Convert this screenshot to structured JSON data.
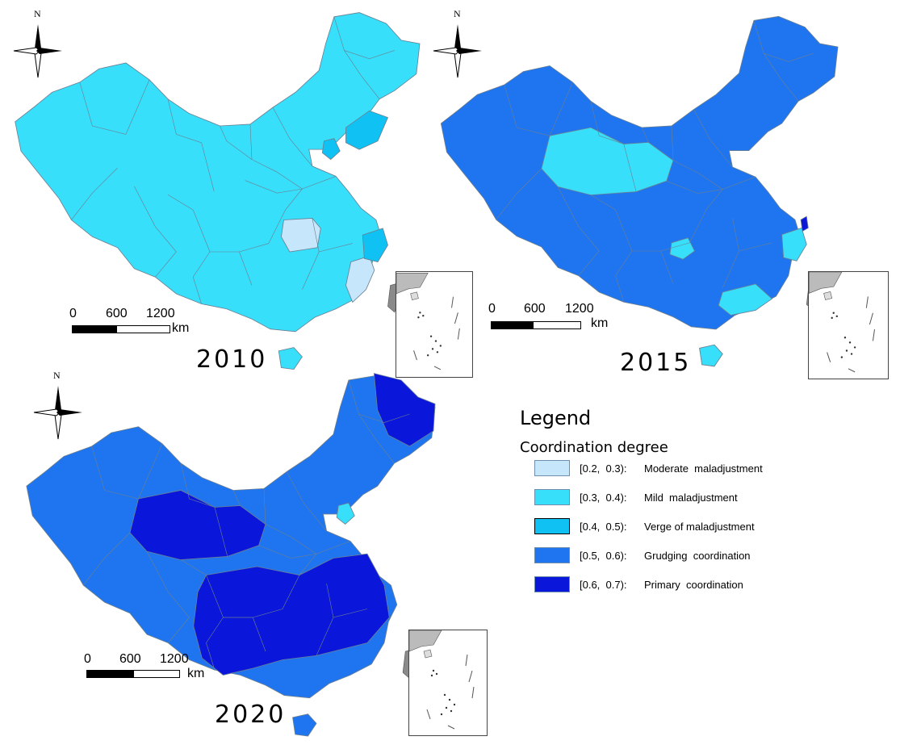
{
  "colors": {
    "moderate": "#c6e6fb",
    "mild": "#38dffb",
    "verge": "#10c2f3",
    "grudging": "#1f75ef",
    "primary": "#0a16d9",
    "border": "#6b7f91",
    "taiwan": "#8a8a8a"
  },
  "maps": [
    {
      "year": "2010",
      "north": "N",
      "scale": {
        "ticks": [
          "0",
          "600",
          "1200"
        ],
        "unit": "km"
      },
      "base_class": "mild",
      "highlighted_regions": [
        {
          "region": "central-east",
          "class": "moderate"
        },
        {
          "region": "southeast-coast",
          "class": "moderate"
        },
        {
          "region": "east-coast",
          "class": "verge"
        },
        {
          "region": "northeast-gulf",
          "class": "verge"
        },
        {
          "region": "north-capital",
          "class": "verge"
        }
      ]
    },
    {
      "year": "2015",
      "north": "N",
      "scale": {
        "ticks": [
          "0",
          "600",
          "1200"
        ],
        "unit": "km"
      },
      "base_class": "grudging",
      "highlighted_regions": [
        {
          "region": "northwest-plateau",
          "class": "mild"
        },
        {
          "region": "central-small",
          "class": "mild"
        },
        {
          "region": "east-coast",
          "class": "mild"
        },
        {
          "region": "south-coast",
          "class": "mild"
        },
        {
          "region": "southern-island",
          "class": "mild"
        },
        {
          "region": "eastern-point",
          "class": "primary"
        }
      ]
    },
    {
      "year": "2020",
      "north": "N",
      "scale": {
        "ticks": [
          "0",
          "600",
          "1200"
        ],
        "unit": "km"
      },
      "base_class": "grudging",
      "highlighted_regions": [
        {
          "region": "northwest-plateau",
          "class": "primary"
        },
        {
          "region": "southwest-south-central",
          "class": "primary"
        },
        {
          "region": "northeast-tip",
          "class": "primary"
        },
        {
          "region": "north-capital",
          "class": "mild"
        }
      ]
    }
  ],
  "legend": {
    "title": "Legend",
    "subtitle": "Coordination degree",
    "items": [
      {
        "range": "[0.2,  0.3):",
        "label": "Moderate  maladjustment",
        "class": "moderate"
      },
      {
        "range": "[0.3,  0.4):",
        "label": "Mild  maladjustment",
        "class": "mild"
      },
      {
        "range": "[0.4,  0.5):",
        "label": "Verge of maladjustment",
        "class": "verge"
      },
      {
        "range": "[0.5,  0.6):",
        "label": "Grudging  coordination",
        "class": "grudging"
      },
      {
        "range": "[0.6,  0.7):",
        "label": "Primary  coordination",
        "class": "primary"
      }
    ]
  }
}
